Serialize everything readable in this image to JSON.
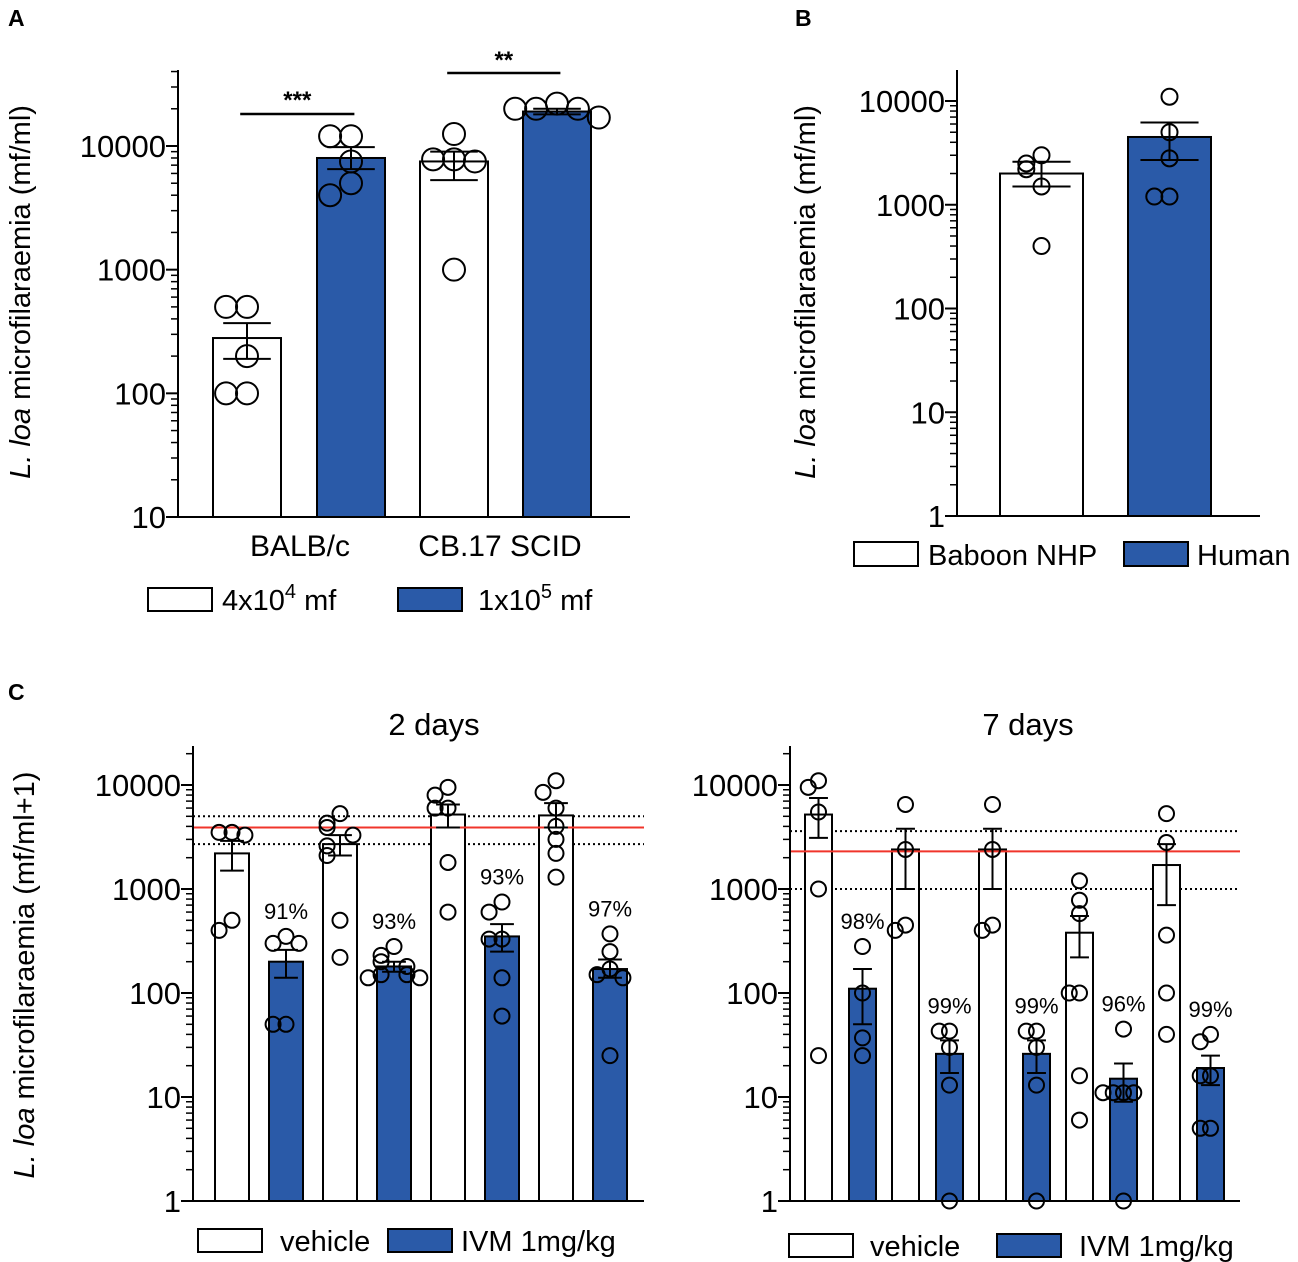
{
  "colors": {
    "blue": "#2a5aa8",
    "white": "#ffffff",
    "red": "#f0352b",
    "ink": "#000000"
  },
  "chart_data": [
    {
      "panel": "A",
      "type": "bar",
      "scale": "log",
      "ylabel_italic": "L. loa",
      "ylabel_rest": " microfilaraemia (mf/ml)",
      "ylim": [
        10,
        40000
      ],
      "yticks": [
        "10",
        "100",
        "1000",
        "10000"
      ],
      "categories": [
        "BALB/c",
        "CB.17 SCID"
      ],
      "legend": [
        {
          "base": "4x10",
          "sup": "4",
          "tail": " mf",
          "fill": "white"
        },
        {
          "base": "1x10",
          "sup": "5",
          "tail": " mf",
          "fill": "blue"
        }
      ],
      "bars": [
        {
          "group": "BALB/c",
          "series": "4x10^4 mf",
          "fill": "white",
          "mean": 280,
          "sem": [
            190,
            370
          ],
          "points": [
            500,
            500,
            200,
            100,
            100
          ]
        },
        {
          "group": "BALB/c",
          "series": "1x10^5 mf",
          "fill": "blue",
          "mean": 8000,
          "sem": [
            6500,
            9800
          ],
          "points": [
            12000,
            12000,
            7500,
            4000,
            5000
          ]
        },
        {
          "group": "CB.17 SCID",
          "series": "4x10^4 mf",
          "fill": "white",
          "mean": 7500,
          "sem": [
            5300,
            9000
          ],
          "points": [
            12500,
            7800,
            7500,
            7800,
            1000
          ]
        },
        {
          "group": "CB.17 SCID",
          "series": "1x10^5 mf",
          "fill": "blue",
          "mean": 19000,
          "sem": [
            18000,
            20000
          ],
          "points": [
            22000,
            20000,
            20000,
            20000,
            17000
          ]
        }
      ],
      "significance": [
        {
          "bars": [
            0,
            1
          ],
          "label": "***"
        },
        {
          "bars": [
            2,
            3
          ],
          "label": "**"
        }
      ]
    },
    {
      "panel": "B",
      "type": "bar",
      "scale": "log",
      "ylabel_italic": "L. loa",
      "ylabel_rest": " microfilaraemia (mf/ml)",
      "ylim": [
        1,
        20000
      ],
      "yticks": [
        "1",
        "10",
        "100",
        "1000",
        "10000"
      ],
      "legend": [
        {
          "base": "Baboon NHP",
          "sup": "",
          "tail": "",
          "fill": "white"
        },
        {
          "base": "Human",
          "sup": "",
          "tail": "",
          "fill": "blue"
        }
      ],
      "bars": [
        {
          "series": "Baboon NHP",
          "fill": "white",
          "mean": 2000,
          "sem": [
            1500,
            2600
          ],
          "points": [
            3000,
            2500,
            2200,
            1500,
            400
          ]
        },
        {
          "series": "Human",
          "fill": "blue",
          "mean": 4500,
          "sem": [
            2700,
            6200
          ],
          "points": [
            11000,
            5000,
            2800,
            1200,
            1200
          ]
        }
      ]
    },
    {
      "panel": "C",
      "title": "2 days",
      "type": "bar",
      "scale": "log",
      "ylabel_italic": "L. loa",
      "ylabel_rest": " microfilaraemia (mf/ml+1)",
      "ylim": [
        1,
        24000
      ],
      "yticks": [
        "1",
        "10",
        "100",
        "1000",
        "10000"
      ],
      "reference_line": 3900,
      "reference_band": [
        2700,
        5000
      ],
      "legend": [
        {
          "base": "vehicle",
          "sup": "",
          "tail": "",
          "fill": "white"
        },
        {
          "base": "IVM 1mg/kg",
          "sup": "",
          "tail": "",
          "fill": "blue"
        }
      ],
      "bars": [
        {
          "series": "vehicle",
          "fill": "white",
          "mean": 2200,
          "sem": [
            1500,
            2900
          ],
          "points": [
            3500,
            3500,
            3300,
            500,
            400
          ]
        },
        {
          "series": "IVM 1mg/kg",
          "fill": "blue",
          "mean": 200,
          "sem": [
            140,
            260
          ],
          "points": [
            350,
            300,
            300,
            50,
            50
          ],
          "reduction": "91%"
        },
        {
          "series": "vehicle",
          "fill": "white",
          "mean": 2700,
          "sem": [
            2100,
            3300
          ],
          "points": [
            5300,
            4300,
            3900,
            3300,
            2600,
            2100,
            500,
            220
          ]
        },
        {
          "series": "IVM 1mg/kg",
          "fill": "blue",
          "mean": 180,
          "sem": [
            160,
            200
          ],
          "points": [
            280,
            230,
            200,
            180,
            150,
            140,
            140,
            150
          ],
          "reduction": "93%"
        },
        {
          "series": "vehicle",
          "fill": "white",
          "mean": 5200,
          "sem": [
            3900,
            6500
          ],
          "points": [
            9500,
            8000,
            6000,
            6000,
            1800,
            600
          ]
        },
        {
          "series": "IVM 1mg/kg",
          "fill": "blue",
          "mean": 350,
          "sem": [
            250,
            460
          ],
          "points": [
            750,
            600,
            330,
            330,
            140,
            60
          ],
          "reduction": "93%"
        },
        {
          "series": "vehicle",
          "fill": "white",
          "mean": 5100,
          "sem": [
            3900,
            6700
          ],
          "points": [
            11000,
            8500,
            6000,
            4000,
            3000,
            2200,
            1300
          ]
        },
        {
          "series": "IVM 1mg/kg",
          "fill": "blue",
          "mean": 170,
          "sem": [
            140,
            210
          ],
          "points": [
            370,
            250,
            170,
            150,
            140,
            25
          ],
          "reduction": "97%"
        }
      ]
    },
    {
      "panel": "C",
      "title": "7 days",
      "type": "bar",
      "scale": "log",
      "ylim": [
        1,
        24000
      ],
      "yticks": [
        "1",
        "10",
        "100",
        "1000",
        "10000"
      ],
      "reference_line": 2300,
      "reference_band": [
        1000,
        3600
      ],
      "legend": [
        {
          "base": "vehicle",
          "sup": "",
          "tail": "",
          "fill": "white"
        },
        {
          "base": "IVM 1mg/kg",
          "sup": "",
          "tail": "",
          "fill": "blue"
        }
      ],
      "bars": [
        {
          "series": "vehicle",
          "fill": "white",
          "mean": 5200,
          "sem": [
            3100,
            7500
          ],
          "points": [
            11000,
            9500,
            5500,
            1000,
            25
          ]
        },
        {
          "series": "IVM 1mg/kg",
          "fill": "blue",
          "mean": 110,
          "sem": [
            50,
            170
          ],
          "points": [
            280,
            100,
            37,
            25
          ],
          "reduction": "98%"
        },
        {
          "series": "vehicle",
          "fill": "white",
          "mean": 2400,
          "sem": [
            1000,
            3800
          ],
          "points": [
            6500,
            2400,
            400,
            450
          ]
        },
        {
          "series": "IVM 1mg/kg",
          "fill": "blue",
          "mean": 26,
          "sem": [
            17,
            35
          ],
          "points": [
            43,
            43,
            30,
            13,
            1
          ],
          "reduction": "99%"
        },
        {
          "series": "vehicle",
          "fill": "white",
          "mean": 2400,
          "sem": [
            1000,
            3800
          ],
          "points": [
            6500,
            2400,
            400,
            450
          ]
        },
        {
          "series": "IVM 1mg/kg",
          "fill": "blue",
          "mean": 26,
          "sem": [
            17,
            35
          ],
          "points": [
            43,
            43,
            30,
            13,
            1
          ],
          "reduction": "99%"
        },
        {
          "series": "vehicle",
          "fill": "white",
          "mean": 380,
          "sem": [
            220,
            550
          ],
          "points": [
            1200,
            780,
            580,
            100,
            100,
            16,
            6
          ]
        },
        {
          "series": "IVM 1mg/kg",
          "fill": "blue",
          "mean": 15,
          "sem": [
            9,
            21
          ],
          "points": [
            45,
            11,
            11,
            11,
            11,
            1
          ],
          "reduction": "96%"
        },
        {
          "series": "vehicle",
          "fill": "white",
          "mean": 1700,
          "sem": [
            700,
            2700
          ],
          "points": [
            5300,
            2800,
            360,
            100,
            40
          ]
        },
        {
          "series": "IVM 1mg/kg",
          "fill": "blue",
          "mean": 19,
          "sem": [
            13,
            25
          ],
          "points": [
            40,
            34,
            16,
            16,
            5,
            5
          ],
          "reduction": "99%"
        }
      ]
    }
  ]
}
